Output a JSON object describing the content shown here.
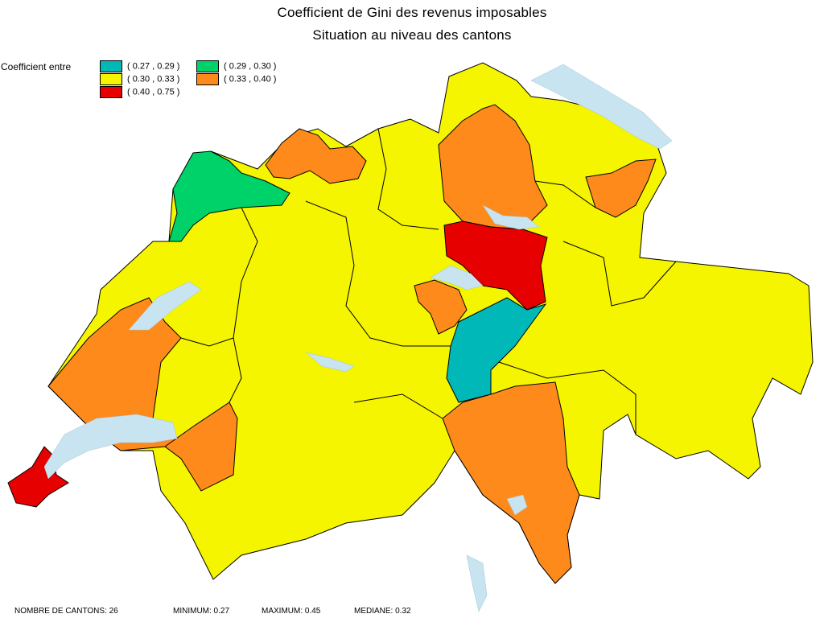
{
  "title_line1": "Coefficient de Gini des revenus imposables",
  "title_line2": "Situation au niveau des cantons",
  "legend": {
    "label": "Coefficient entre",
    "items": [
      {
        "label": "( 0.27 , 0.29 )",
        "color": "#00b8b8"
      },
      {
        "label": "( 0.29 , 0.30 )",
        "color": "#00d26a"
      },
      {
        "label": "( 0.30 , 0.33 )",
        "color": "#f5f500"
      },
      {
        "label": "( 0.33 , 0.40 )",
        "color": "#ff8a1c"
      },
      {
        "label": "( 0.40 , 0.75 )",
        "color": "#e60000"
      }
    ]
  },
  "footer": {
    "count": "NOMBRE DE CANTONS: 26",
    "min": "MINIMUM: 0.27",
    "max": "MAXIMUM: 0.45",
    "median": "MEDIANE: 0.32"
  },
  "colors": {
    "lake": "#c8e4f0",
    "border": "#000000",
    "background": "#ffffff"
  }
}
